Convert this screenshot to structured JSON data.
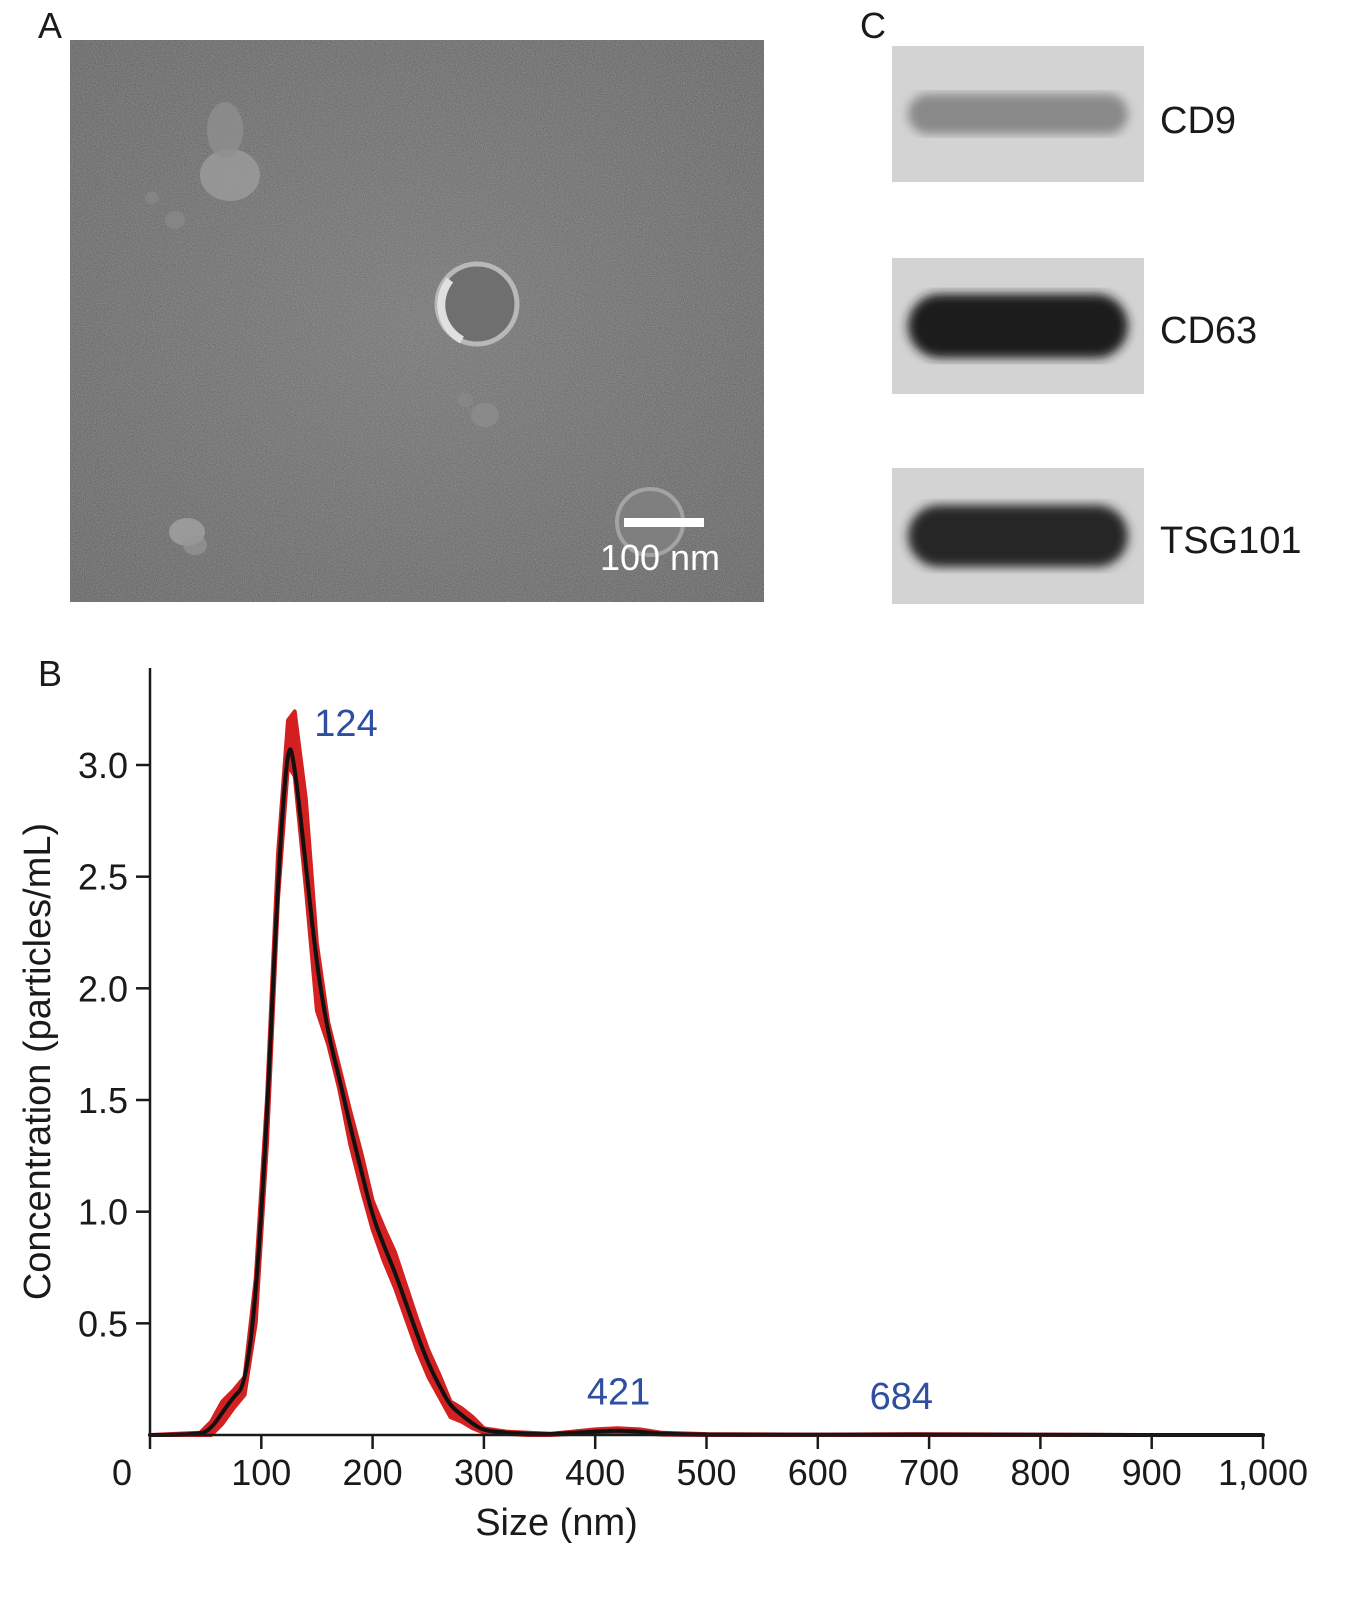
{
  "panels": {
    "a_label": "A",
    "b_label": "B",
    "c_label": "C"
  },
  "em_image": {
    "scale_bar_label": "100 nm"
  },
  "western_blot": {
    "bands": [
      {
        "label": "CD9",
        "intensity": 0.35
      },
      {
        "label": "CD63",
        "intensity": 0.95
      },
      {
        "label": "TSG101",
        "intensity": 0.9
      }
    ]
  },
  "colors": {
    "error_band": "#d42020",
    "mean_line": "#111111",
    "peak_label": "#2e4ea0",
    "axis": "#1a1a1a"
  },
  "chart_data": {
    "type": "line",
    "xlabel": "Size (nm)",
    "ylabel": "Concentration (particles/mL)",
    "xlim": [
      0,
      1000
    ],
    "ylim": [
      0,
      3.3
    ],
    "x_ticks": [
      0,
      100,
      200,
      300,
      400,
      500,
      600,
      700,
      800,
      900,
      1000
    ],
    "x_tick_labels": [
      "0",
      "100",
      "200",
      "300",
      "400",
      "500",
      "600",
      "700",
      "800",
      "900",
      "1,000"
    ],
    "y_ticks": [
      0.5,
      1.0,
      1.5,
      2.0,
      2.5,
      3.0
    ],
    "y_tick_labels": [
      "0.5",
      "1.0",
      "1.5",
      "2.0",
      "2.5",
      "3.0"
    ],
    "annotations": [
      {
        "text": "124",
        "x": 124,
        "y": 3.12
      },
      {
        "text": "421",
        "x": 421,
        "y": 0.02
      },
      {
        "text": "684",
        "x": 684,
        "y": 0.0
      }
    ],
    "series": [
      {
        "x": [
          0,
          45,
          55,
          65,
          75,
          85,
          95,
          105,
          115,
          124,
          130,
          140,
          150,
          160,
          170,
          180,
          190,
          200,
          210,
          220,
          230,
          240,
          250,
          260,
          270,
          280,
          290,
          300,
          320,
          340,
          360,
          380,
          400,
          420,
          440,
          460,
          500,
          600,
          684,
          800,
          900,
          1000
        ],
        "y": [
          0,
          0,
          0.03,
          0.1,
          0.17,
          0.22,
          0.6,
          1.4,
          2.5,
          3.12,
          3.0,
          2.55,
          2.1,
          1.8,
          1.6,
          1.38,
          1.18,
          0.98,
          0.85,
          0.73,
          0.59,
          0.45,
          0.32,
          0.22,
          0.13,
          0.09,
          0.05,
          0.02,
          0.01,
          0.005,
          0.003,
          0.01,
          0.015,
          0.02,
          0.015,
          0.005,
          0.002,
          0.001,
          0.002,
          0.001,
          0.0,
          0.0
        ]
      },
      {
        "x": [
          0,
          45,
          55,
          65,
          75,
          85,
          95,
          105,
          115,
          124,
          130,
          140,
          150,
          160,
          170,
          180,
          190,
          200,
          210,
          220,
          230,
          240,
          250,
          260,
          270,
          280,
          290,
          300,
          320,
          340,
          360,
          380,
          400,
          420,
          440,
          460,
          500,
          600,
          684,
          800,
          900,
          1000
        ],
        "y_low": [
          0,
          0,
          0.0,
          0.05,
          0.12,
          0.18,
          0.5,
          1.3,
          2.4,
          3.0,
          2.95,
          2.45,
          1.9,
          1.75,
          1.55,
          1.3,
          1.1,
          0.92,
          0.78,
          0.66,
          0.52,
          0.38,
          0.26,
          0.17,
          0.08,
          0.06,
          0.03,
          0.01,
          0.005,
          0.0,
          0.0,
          0.005,
          0.008,
          0.01,
          0.008,
          0.002,
          0.0,
          0.0,
          0.0,
          0.0,
          0.0,
          0.0
        ],
        "y_high": [
          0,
          0.01,
          0.06,
          0.15,
          0.2,
          0.26,
          0.7,
          1.5,
          2.6,
          3.2,
          3.24,
          2.85,
          2.2,
          1.85,
          1.65,
          1.45,
          1.26,
          1.05,
          0.93,
          0.82,
          0.67,
          0.52,
          0.38,
          0.27,
          0.15,
          0.12,
          0.08,
          0.03,
          0.015,
          0.01,
          0.006,
          0.015,
          0.025,
          0.03,
          0.025,
          0.01,
          0.004,
          0.002,
          0.004,
          0.002,
          0.0,
          0.0
        ]
      }
    ]
  }
}
